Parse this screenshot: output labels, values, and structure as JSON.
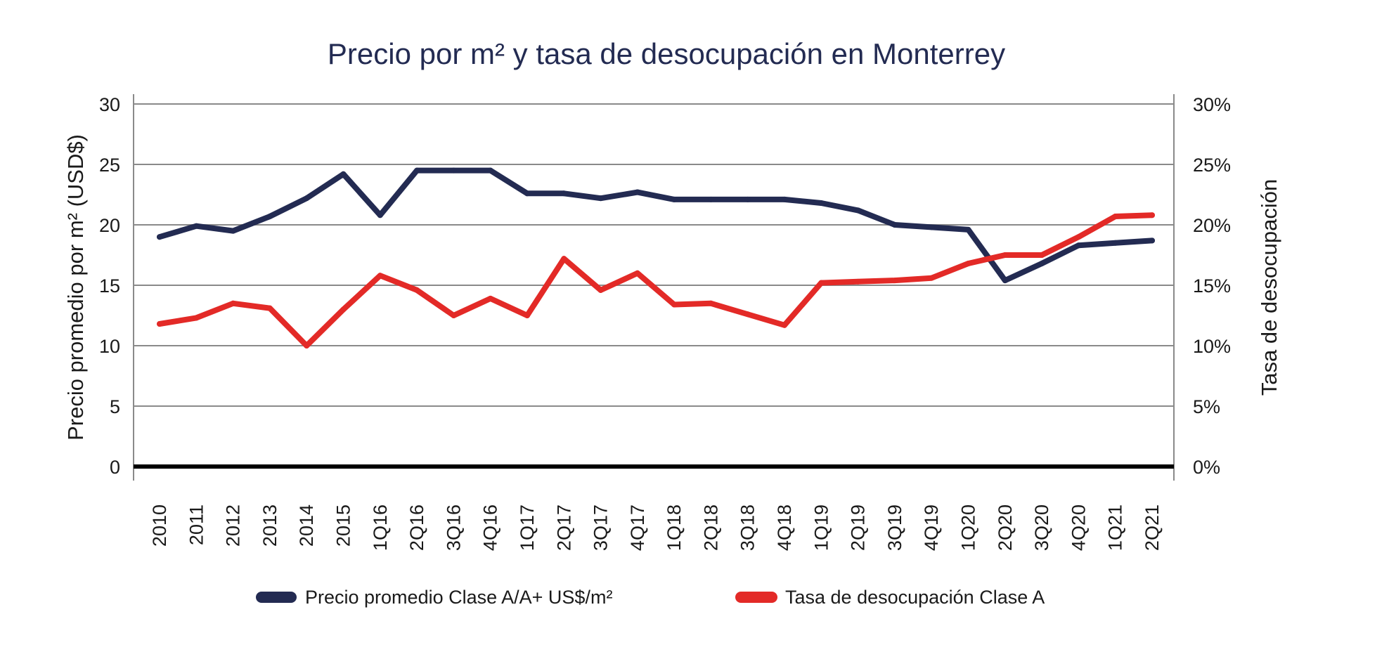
{
  "chart_data": {
    "type": "line",
    "title": "Precio por m² y tasa de desocupación en Monterrey",
    "xlabel": "",
    "ylabel": "Precio promedio por m² (USD$)",
    "y2label": "Tasa de desocupación",
    "ylim": [
      0,
      30
    ],
    "y2lim": [
      0,
      30
    ],
    "yticks": [
      "0",
      "5",
      "10",
      "15",
      "20",
      "25",
      "30"
    ],
    "y2ticks": [
      "0%",
      "5%",
      "10%",
      "15%",
      "20%",
      "25%",
      "30%"
    ],
    "grid": true,
    "legend_position": "bottom",
    "categories": [
      "2010",
      "2011",
      "2012",
      "2013",
      "2014",
      "2015",
      "1Q16",
      "2Q16",
      "3Q16",
      "4Q16",
      "1Q17",
      "2Q17",
      "3Q17",
      "4Q17",
      "1Q18",
      "2Q18",
      "3Q18",
      "4Q18",
      "1Q19",
      "2Q19",
      "3Q19",
      "4Q19",
      "1Q20",
      "2Q20",
      "3Q20",
      "4Q20",
      "1Q21",
      "2Q21"
    ],
    "series": [
      {
        "name": "Precio promedio Clase A/A+ US$/m²",
        "axis": "left",
        "color": "#232b52",
        "values": [
          19.0,
          19.9,
          19.5,
          20.7,
          22.2,
          24.2,
          20.8,
          24.5,
          24.5,
          24.5,
          22.6,
          22.6,
          22.2,
          22.7,
          22.1,
          22.1,
          22.1,
          22.1,
          21.8,
          21.2,
          20.0,
          19.8,
          19.6,
          15.4,
          16.8,
          18.3,
          18.5,
          18.7
        ]
      },
      {
        "name": "Tasa de desocupación Clase A",
        "axis": "right",
        "unit": "%",
        "color": "#e32a27",
        "values": [
          11.8,
          12.3,
          13.5,
          13.1,
          10.0,
          13.0,
          15.8,
          14.6,
          12.5,
          13.9,
          12.5,
          17.2,
          14.6,
          16.0,
          13.4,
          13.5,
          12.6,
          11.7,
          15.2,
          15.3,
          15.4,
          15.6,
          16.8,
          17.5,
          17.5,
          19.0,
          20.7,
          20.8
        ]
      }
    ]
  }
}
